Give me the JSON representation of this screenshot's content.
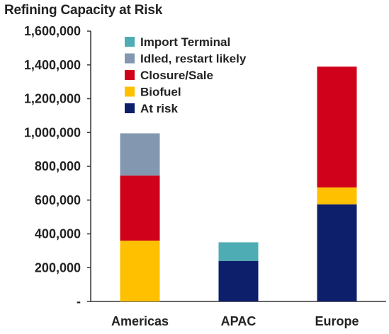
{
  "chart_data": {
    "type": "bar",
    "stacked": true,
    "title": "Refining Capacity at Risk",
    "categories": [
      "Americas",
      "APAC",
      "Europe"
    ],
    "ylim": [
      0,
      1600000
    ],
    "yticks": [
      0,
      200000,
      400000,
      600000,
      800000,
      1000000,
      1200000,
      1400000,
      1600000
    ],
    "ytick_labels": [
      "-",
      "200,000",
      "400,000",
      "600,000",
      "800,000",
      "1,000,000",
      "1,200,000",
      "1,400,000",
      "1,600,000"
    ],
    "grid": false,
    "legend_position": "top-left",
    "series": [
      {
        "name": "At risk",
        "color": "#0d1f6b",
        "values": [
          0,
          240000,
          575000
        ]
      },
      {
        "name": "Biofuel",
        "color": "#ffc000",
        "values": [
          360000,
          0,
          100000
        ]
      },
      {
        "name": "Closure/Sale",
        "color": "#d0021b",
        "values": [
          385000,
          0,
          715000
        ]
      },
      {
        "name": "Idled, restart likely",
        "color": "#8497b0",
        "values": [
          250000,
          0,
          0
        ]
      },
      {
        "name": "Import Terminal",
        "color": "#4eacb4",
        "values": [
          0,
          110000,
          0
        ]
      }
    ],
    "legend_order": [
      "Import Terminal",
      "Idled, restart likely",
      "Closure/Sale",
      "Biofuel",
      "At risk"
    ]
  }
}
